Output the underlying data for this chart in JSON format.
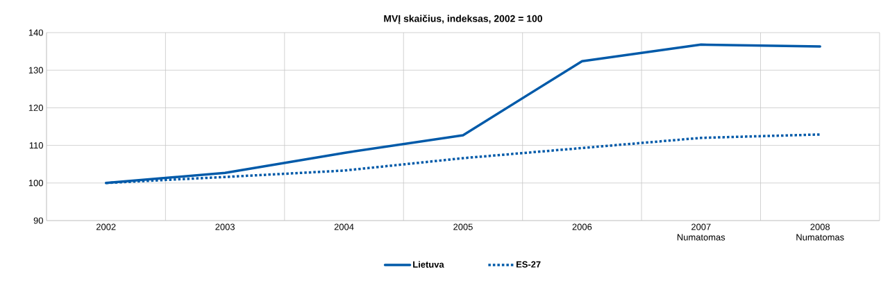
{
  "chart_data": {
    "type": "line",
    "title": "MVĮ skaičius, indeksas, 2002 = 100",
    "categories": [
      "2002",
      "2003",
      "2004",
      "2005",
      "2006",
      "2007 Numatomas",
      "2008 Numatomas"
    ],
    "series": [
      {
        "name": "Lietuva",
        "color": "#005aa9",
        "line_style": "solid",
        "values": [
          100,
          102.7,
          108,
          112.7,
          132.4,
          136.8,
          136.3
        ]
      },
      {
        "name": "ES-27",
        "color": "#005aa9",
        "line_style": "dotted",
        "values": [
          100,
          101.6,
          103.3,
          106.6,
          109.3,
          112,
          112.9
        ]
      }
    ],
    "ylim": [
      90,
      140
    ],
    "yticks": [
      90,
      100,
      110,
      120,
      130,
      140
    ],
    "grid": true,
    "legend": "bottom",
    "marker": "none"
  }
}
